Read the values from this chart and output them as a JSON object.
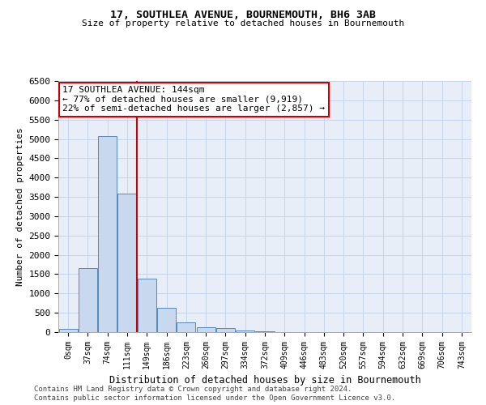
{
  "title1": "17, SOUTHLEA AVENUE, BOURNEMOUTH, BH6 3AB",
  "title2": "Size of property relative to detached houses in Bournemouth",
  "xlabel": "Distribution of detached houses by size in Bournemouth",
  "ylabel": "Number of detached properties",
  "bin_labels": [
    "0sqm",
    "37sqm",
    "74sqm",
    "111sqm",
    "149sqm",
    "186sqm",
    "223sqm",
    "260sqm",
    "297sqm",
    "334sqm",
    "372sqm",
    "409sqm",
    "446sqm",
    "483sqm",
    "520sqm",
    "557sqm",
    "594sqm",
    "632sqm",
    "669sqm",
    "706sqm",
    "743sqm"
  ],
  "bar_heights": [
    75,
    1650,
    5070,
    3580,
    1380,
    620,
    250,
    130,
    100,
    50,
    20,
    5,
    3,
    2,
    1,
    0,
    0,
    0,
    0,
    0,
    0
  ],
  "bar_color": "#c8d8ef",
  "bar_edge_color": "#5588bb",
  "vline_x": 3.5,
  "vline_color": "#cc0000",
  "ylim": [
    0,
    6500
  ],
  "yticks": [
    0,
    500,
    1000,
    1500,
    2000,
    2500,
    3000,
    3500,
    4000,
    4500,
    5000,
    5500,
    6000,
    6500
  ],
  "annotation_text": "17 SOUTHLEA AVENUE: 144sqm\n← 77% of detached houses are smaller (9,919)\n22% of semi-detached houses are larger (2,857) →",
  "annotation_box_color": "#cc0000",
  "annotation_bg": "#ffffff",
  "footer1": "Contains HM Land Registry data © Crown copyright and database right 2024.",
  "footer2": "Contains public sector information licensed under the Open Government Licence v3.0.",
  "grid_color": "#c8d4e8",
  "bg_color": "#e8eef8"
}
